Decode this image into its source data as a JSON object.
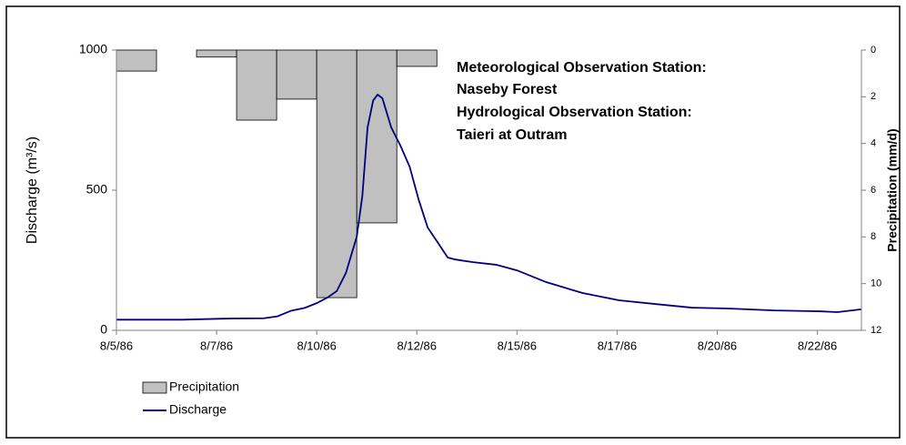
{
  "chart_data": {
    "type": "hydrograph",
    "ylabel": "Discharge (m³/s)",
    "y2label": "Precipitation (mm/d)",
    "annotations": [
      "Meteorological Observation Station:",
      "Naseby Forest",
      "Hydrological Observation Station:",
      "Taieri at Outram"
    ],
    "xlim": [
      0,
      18.6
    ],
    "xticks": [
      {
        "value": 0,
        "label": "8/5/86"
      },
      {
        "value": 2.5,
        "label": "8/7/86"
      },
      {
        "value": 5,
        "label": "8/10/86"
      },
      {
        "value": 7.5,
        "label": "8/12/86"
      },
      {
        "value": 10,
        "label": "8/15/86"
      },
      {
        "value": 12.5,
        "label": "8/17/86"
      },
      {
        "value": 15,
        "label": "8/20/86"
      },
      {
        "value": 17.5,
        "label": "8/22/86"
      }
    ],
    "ylim": [
      0,
      1000
    ],
    "yticks": [
      0,
      500,
      1000
    ],
    "y2lim": [
      0,
      12
    ],
    "y2ticks": [
      0,
      2,
      4,
      6,
      8,
      10,
      12
    ],
    "y2_inverted": true,
    "legend": "bottom-left",
    "precipitation": {
      "name": "Precipitation",
      "color": "#c0c0c0",
      "axis": "y2",
      "bins": [
        0,
        1,
        2,
        3,
        4,
        5,
        6,
        7,
        8
      ],
      "values": [
        0.9,
        0,
        0.3,
        3.0,
        2.1,
        10.6,
        7.4,
        0.7
      ]
    },
    "discharge": {
      "name": "Discharge",
      "color": "#000080",
      "x": [
        0,
        1.64,
        2.77,
        3.68,
        4.02,
        4.36,
        4.7,
        5.0,
        5.27,
        5.5,
        5.73,
        6.0,
        6.14,
        6.27,
        6.41,
        6.52,
        6.64,
        6.86,
        7.09,
        7.32,
        7.55,
        7.77,
        8.0,
        8.27,
        8.45,
        8.91,
        9.48,
        10.0,
        10.73,
        11.64,
        12.55,
        13.45,
        14.36,
        15.27,
        16.41,
        17.55,
        18.0,
        18.6
      ],
      "values": [
        38,
        38,
        42,
        43,
        50,
        70,
        80,
        97,
        117,
        140,
        205,
        334,
        480,
        724,
        820,
        841,
        828,
        724,
        659,
        584,
        464,
        367,
        318,
        260,
        253,
        243,
        234,
        214,
        172,
        133,
        107,
        94,
        81,
        78,
        71,
        68,
        65,
        75
      ]
    }
  }
}
